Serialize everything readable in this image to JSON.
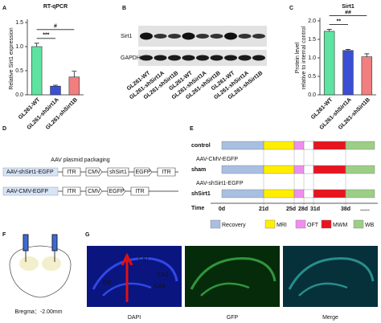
{
  "chart_data": [
    {
      "type": "bar",
      "title": "RT-qPCR",
      "ylabel": [
        "Relative Sirt1 expression"
      ],
      "categories": [
        "GL261-WT",
        "GL261-shSirt1A",
        "GL261-shSirt1B"
      ],
      "values": [
        1.0,
        0.18,
        0.37
      ],
      "errors": [
        0.07,
        0.02,
        0.12
      ],
      "colors": [
        "#5fe3a1",
        "#3b4fd4",
        "#f17f7f"
      ],
      "ylim": [
        0,
        1.5
      ],
      "yticks": [
        {
          "value": 0,
          "label": "0.0"
        },
        {
          "value": 0.5,
          "label": "0.5"
        },
        {
          "value": 1,
          "label": "1.0"
        },
        {
          "value": 1.5,
          "label": "1.5"
        }
      ],
      "annotations": [
        "***",
        "#"
      ]
    },
    {
      "type": "bar",
      "title": "Sirt1",
      "ylabel": [
        "Protein level",
        "relative to internal control"
      ],
      "categories": [
        "GL261-WT",
        "GL261-shSirt1A",
        "GL261-shSirt1B"
      ],
      "values": [
        1.72,
        1.2,
        1.03
      ],
      "errors": [
        0.05,
        0.03,
        0.08
      ],
      "colors": [
        "#5fe3a1",
        "#3b4fd4",
        "#f17f7f"
      ],
      "ylim": [
        0,
        2
      ],
      "yticks": [
        {
          "value": 0,
          "label": "0.0"
        },
        {
          "value": 0.5,
          "label": "0.5"
        },
        {
          "value": 1,
          "label": "1.0"
        },
        {
          "value": 1.5,
          "label": "1.5"
        },
        {
          "value": 2,
          "label": "2.0"
        }
      ],
      "annotations": [
        "**",
        "##"
      ]
    }
  ],
  "panel_labels": [
    "A",
    "B",
    "C",
    "D",
    "E",
    "F",
    "G"
  ],
  "blot": {
    "rows": [
      "Sirt1",
      "GAPDH"
    ],
    "lanes": [
      "GL261-WT",
      "GL261-shSirt1A",
      "GL261-shSirt1B",
      "GL261-WT",
      "GL261-shSirt1A",
      "GL261-shSirt1B",
      "GL261-WT",
      "GL261-shSirt1A",
      "GL261-shSirt1B"
    ]
  },
  "plasmid": {
    "title": "AAV plasmid packaging",
    "constructs": [
      {
        "name": "AAV-shSirt1-EGFP",
        "elements": [
          "ITR",
          "CMV",
          "shSirt1",
          "EGFP",
          "ITR"
        ]
      },
      {
        "name": "AAV-CMV-EGFP",
        "elements": [
          "ITR",
          "CMV",
          "EGFP",
          "ITR"
        ]
      }
    ]
  },
  "timeline": {
    "groups": [
      "control",
      "sham",
      "shSirt1"
    ],
    "vectors": [
      "AAV-CMV-EGFP",
      "AAV-shSirt1-EGFP"
    ],
    "axis_label": "Time",
    "days": [
      "0d",
      "21d",
      "25d",
      "28d",
      "31d",
      "38d",
      "......"
    ],
    "legend": [
      {
        "name": "Recovery",
        "color": "#a9bfe2"
      },
      {
        "name": "MRI",
        "color": "#ffee00"
      },
      {
        "name": "OFT",
        "color": "#f08ef0"
      },
      {
        "name": "MWM",
        "color": "#e8141e"
      },
      {
        "name": "WB",
        "color": "#9ccf85"
      }
    ]
  },
  "surgery": {
    "label": "Bregma：-2.00mm"
  },
  "histology": {
    "channels": [
      "DAPI",
      "GFP",
      "Merge"
    ],
    "regions": [
      "CA1",
      "CA2",
      "CA3",
      "DG"
    ]
  }
}
